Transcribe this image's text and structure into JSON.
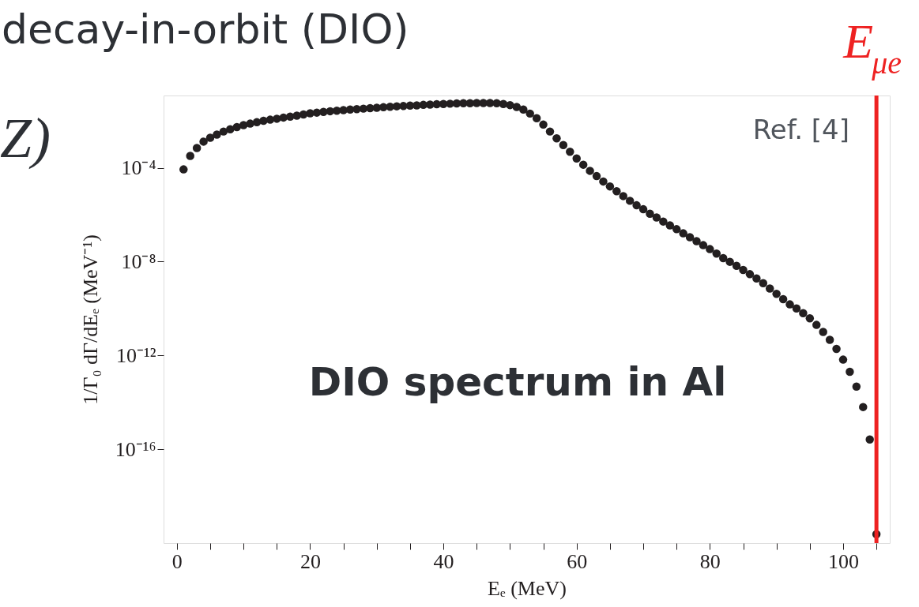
{
  "chart_data": {
    "type": "scatter",
    "title": "decay-in-orbit (DIO)",
    "xlabel": "Eₑ (MeV)",
    "ylabel": "1/Γ₀ dΓ/dEₑ (MeV⁻¹)",
    "x": [
      1,
      2,
      3,
      4,
      5,
      6,
      7,
      8,
      9,
      10,
      11,
      12,
      13,
      14,
      15,
      16,
      17,
      18,
      19,
      20,
      21,
      22,
      23,
      24,
      25,
      26,
      27,
      28,
      29,
      30,
      31,
      32,
      33,
      34,
      35,
      36,
      37,
      38,
      39,
      40,
      41,
      42,
      43,
      44,
      45,
      46,
      47,
      48,
      49,
      50,
      51,
      52,
      53,
      54,
      55,
      56,
      57,
      58,
      59,
      60,
      61,
      62,
      63,
      64,
      65,
      66,
      67,
      68,
      69,
      70,
      71,
      72,
      73,
      74,
      75,
      76,
      77,
      78,
      79,
      80,
      81,
      82,
      83,
      84,
      85,
      86,
      87,
      88,
      89,
      90,
      91,
      92,
      93,
      94,
      95,
      96,
      97,
      98,
      99,
      100,
      101,
      102,
      103,
      104,
      105
    ],
    "series": [
      {
        "color": "#231f20",
        "values": [
          8.5e-05,
          0.00032,
          0.00069,
          0.0013,
          0.0019,
          0.0026,
          0.0035,
          0.0044,
          0.0054,
          0.0066,
          0.0076,
          0.0087,
          0.01,
          0.0112,
          0.0123,
          0.0138,
          0.0151,
          0.0166,
          0.0186,
          0.0209,
          0.0224,
          0.024,
          0.0257,
          0.0269,
          0.0288,
          0.0302,
          0.0316,
          0.0331,
          0.0347,
          0.0363,
          0.038,
          0.0398,
          0.0417,
          0.0427,
          0.0447,
          0.0457,
          0.0479,
          0.049,
          0.0513,
          0.0525,
          0.0537,
          0.055,
          0.0562,
          0.0562,
          0.0575,
          0.0575,
          0.0575,
          0.0562,
          0.0525,
          0.0468,
          0.0389,
          0.0302,
          0.0204,
          0.0129,
          0.0069,
          0.0035,
          0.0018,
          0.00093,
          0.00048,
          0.00025,
          0.000135,
          7.4e-05,
          4.4e-05,
          2.6e-05,
          1.6e-05,
          1e-05,
          6.2e-06,
          3.9e-06,
          2.5e-06,
          1.7e-06,
          1.1e-06,
          7.6e-07,
          5.1e-07,
          3.5e-07,
          2.4e-07,
          1.6e-07,
          1.1e-07,
          7.4e-08,
          5e-08,
          3.4e-08,
          2.2e-08,
          1.4e-08,
          9.8e-09,
          6.6e-09,
          4.4e-09,
          2.9e-09,
          1.9e-09,
          1.2e-09,
          7.1e-10,
          4.2e-10,
          2.5e-10,
          1.5e-10,
          1e-10,
          6.3e-11,
          3.8e-11,
          2e-11,
          1e-11,
          4.6e-12,
          1.9e-12,
          6.6e-13,
          2e-13,
          4.7e-14,
          6.3e-15,
          2.6e-16,
          2.4e-20
        ]
      }
    ],
    "marker": "circle",
    "log": "y",
    "grid": false,
    "xlim": [
      -2,
      107
    ],
    "ylim": [
      1e-20,
      0.12
    ],
    "xticks": [
      0,
      {
        "value": 5,
        "label": null
      },
      {
        "value": 10,
        "label": null
      },
      {
        "value": 15,
        "label": null
      },
      20,
      {
        "value": 25,
        "label": null
      },
      {
        "value": 30,
        "label": null
      },
      {
        "value": 35,
        "label": null
      },
      40,
      {
        "value": 45,
        "label": null
      },
      {
        "value": 50,
        "label": null
      },
      {
        "value": 55,
        "label": null
      },
      60,
      {
        "value": 65,
        "label": null
      },
      {
        "value": 70,
        "label": null
      },
      {
        "value": 75,
        "label": null
      },
      80,
      {
        "value": 85,
        "label": null
      },
      {
        "value": 90,
        "label": null
      },
      {
        "value": 95,
        "label": null
      },
      100,
      {
        "value": 105,
        "label": null
      }
    ],
    "yticks": [
      {
        "value": 0.0001,
        "label": "10⁻⁴"
      },
      {
        "value": 1e-08,
        "label": "10⁻⁸"
      },
      {
        "value": 1e-12,
        "label": "10⁻¹²"
      },
      {
        "value": 1e-16,
        "label": "10⁻¹⁶"
      }
    ],
    "ref_lines": [
      {
        "axis": "x",
        "value": 105,
        "label": "E$_{μe}$",
        "color": "#ee2222"
      }
    ],
    "annotations": [
      "Ref. [4]",
      "DIO spectrum in Al",
      "Z)"
    ]
  }
}
